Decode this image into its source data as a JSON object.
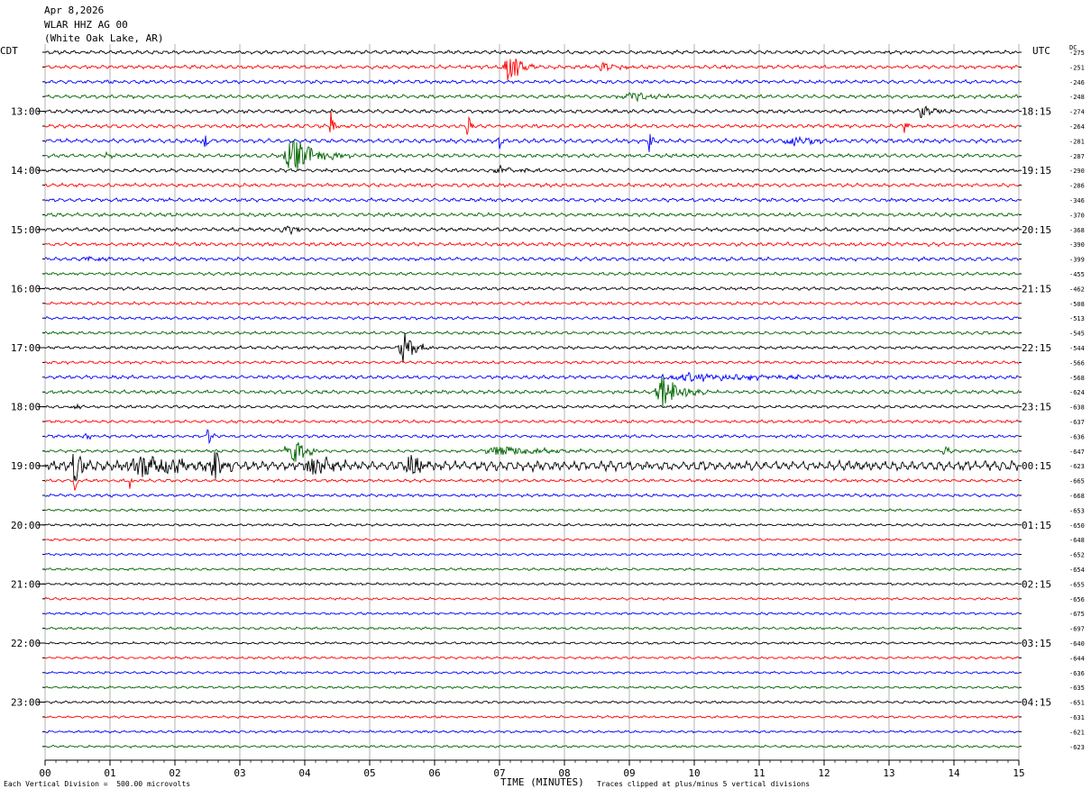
{
  "header": {
    "date": "Apr 8,2026",
    "station": "WLAR HHZ AG 00",
    "location": "(White Oak Lake, AR)"
  },
  "left_timezone": "CDT",
  "right_timezone": "UTC",
  "dc_label": "DC",
  "footer": {
    "scale_note": "Each Vertical Division =  500.00 microvolts",
    "clip_note": "Traces clipped at plus/minus 5 vertical divisions"
  },
  "colors": {
    "trace_cycle": [
      "#000000",
      "#ff0000",
      "#0000ff",
      "#006400"
    ],
    "grid": "#808080",
    "axis": "#000000"
  },
  "chart_data": {
    "type": "line",
    "subtype": "helicorder",
    "xlabel": "TIME (MINUTES)",
    "xlim": [
      0,
      15
    ],
    "x_ticks": [
      "00",
      "01",
      "02",
      "03",
      "04",
      "05",
      "06",
      "07",
      "08",
      "09",
      "10",
      "11",
      "12",
      "13",
      "14",
      "15"
    ],
    "row_count": 48,
    "minutes_per_row": 15,
    "left_hour_labels": [
      {
        "row": 4,
        "label": "13:00"
      },
      {
        "row": 8,
        "label": "14:00"
      },
      {
        "row": 12,
        "label": "15:00"
      },
      {
        "row": 16,
        "label": "16:00"
      },
      {
        "row": 20,
        "label": "17:00"
      },
      {
        "row": 24,
        "label": "18:00"
      },
      {
        "row": 28,
        "label": "19:00"
      },
      {
        "row": 32,
        "label": "20:00"
      },
      {
        "row": 36,
        "label": "21:00"
      },
      {
        "row": 40,
        "label": "22:00"
      },
      {
        "row": 44,
        "label": "23:00"
      }
    ],
    "right_hour_labels": [
      {
        "row": 4,
        "label": "18:15"
      },
      {
        "row": 8,
        "label": "19:15"
      },
      {
        "row": 12,
        "label": "20:15"
      },
      {
        "row": 16,
        "label": "21:15"
      },
      {
        "row": 20,
        "label": "22:15"
      },
      {
        "row": 24,
        "label": "23:15"
      },
      {
        "row": 28,
        "label": "00:15"
      },
      {
        "row": 32,
        "label": "01:15"
      },
      {
        "row": 36,
        "label": "02:15"
      },
      {
        "row": 40,
        "label": "03:15"
      },
      {
        "row": 44,
        "label": "04:15"
      }
    ],
    "dc_offsets": [
      -275,
      -251,
      -246,
      -248,
      -274,
      -264,
      -281,
      -287,
      -290,
      -286,
      -346,
      -370,
      -368,
      -390,
      -399,
      -455,
      -462,
      -508,
      -513,
      -545,
      -544,
      -566,
      -568,
      -624,
      -638,
      -637,
      -636,
      -647,
      -623,
      -665,
      -668,
      -653,
      -650,
      -648,
      -652,
      -654,
      -655,
      -656,
      -675,
      -697,
      -640,
      -644,
      -636,
      -635,
      -651,
      -631,
      -621,
      -623
    ],
    "trace_amplitude_divisions": [
      0.6,
      0.6,
      0.6,
      0.6,
      0.6,
      0.6,
      0.7,
      0.6,
      0.6,
      0.6,
      0.6,
      0.6,
      0.6,
      0.6,
      0.6,
      0.5,
      0.5,
      0.5,
      0.5,
      0.5,
      0.5,
      0.5,
      0.6,
      0.6,
      0.5,
      0.5,
      0.5,
      0.5,
      1.6,
      0.5,
      0.5,
      0.4,
      0.4,
      0.4,
      0.4,
      0.4,
      0.4,
      0.4,
      0.4,
      0.4,
      0.4,
      0.4,
      0.4,
      0.4,
      0.4,
      0.4,
      0.4,
      0.4
    ],
    "events": [
      {
        "row": 1,
        "minute": 7.13,
        "duration_min": 0.25,
        "amplitude_div": 5
      },
      {
        "row": 1,
        "minute": 8.6,
        "duration_min": 0.4,
        "amplitude_div": 1
      },
      {
        "row": 3,
        "minute": 9.0,
        "duration_min": 0.8,
        "amplitude_div": 1
      },
      {
        "row": 4,
        "minute": 13.5,
        "duration_min": 0.3,
        "amplitude_div": 1.5
      },
      {
        "row": 5,
        "minute": 4.4,
        "duration_min": 0.06,
        "amplitude_div": 5
      },
      {
        "row": 5,
        "minute": 6.5,
        "duration_min": 0.06,
        "amplitude_div": 5
      },
      {
        "row": 5,
        "minute": 13.24,
        "duration_min": 0.04,
        "amplitude_div": 5
      },
      {
        "row": 6,
        "minute": 2.45,
        "duration_min": 0.06,
        "amplitude_div": 3
      },
      {
        "row": 6,
        "minute": 7.0,
        "duration_min": 0.08,
        "amplitude_div": 2
      },
      {
        "row": 6,
        "minute": 9.3,
        "duration_min": 0.05,
        "amplitude_div": 3
      },
      {
        "row": 6,
        "minute": 11.5,
        "duration_min": 0.6,
        "amplitude_div": 1
      },
      {
        "row": 7,
        "minute": 0.95,
        "duration_min": 0.06,
        "amplitude_div": 2.5
      },
      {
        "row": 7,
        "minute": 3.8,
        "duration_min": 0.5,
        "amplitude_div": 5
      },
      {
        "row": 8,
        "minute": 7.0,
        "duration_min": 0.5,
        "amplitude_div": 1
      },
      {
        "row": 12,
        "minute": 3.7,
        "duration_min": 0.4,
        "amplitude_div": 1
      },
      {
        "row": 14,
        "minute": 0.6,
        "duration_min": 0.3,
        "amplitude_div": 1
      },
      {
        "row": 20,
        "minute": 5.5,
        "duration_min": 0.25,
        "amplitude_div": 5
      },
      {
        "row": 22,
        "minute": 10.0,
        "duration_min": 2.0,
        "amplitude_div": 1
      },
      {
        "row": 23,
        "minute": 9.5,
        "duration_min": 0.4,
        "amplitude_div": 5
      },
      {
        "row": 24,
        "minute": 0.45,
        "duration_min": 0.08,
        "amplitude_div": 2
      },
      {
        "row": 26,
        "minute": 0.6,
        "duration_min": 0.1,
        "amplitude_div": 2
      },
      {
        "row": 26,
        "minute": 2.5,
        "duration_min": 0.1,
        "amplitude_div": 2
      },
      {
        "row": 27,
        "minute": 3.75,
        "duration_min": 0.3,
        "amplitude_div": 5
      },
      {
        "row": 27,
        "minute": 7.0,
        "duration_min": 1.0,
        "amplitude_div": 1.5
      },
      {
        "row": 27,
        "minute": 13.85,
        "duration_min": 0.1,
        "amplitude_div": 2
      },
      {
        "row": 28,
        "minute": 0.45,
        "duration_min": 0.15,
        "amplitude_div": 5
      },
      {
        "row": 28,
        "minute": 1.5,
        "duration_min": 1.1,
        "amplitude_div": 3
      },
      {
        "row": 28,
        "minute": 2.6,
        "duration_min": 0.2,
        "amplitude_div": 5
      },
      {
        "row": 28,
        "minute": 4.1,
        "duration_min": 0.4,
        "amplitude_div": 3
      },
      {
        "row": 28,
        "minute": 5.65,
        "duration_min": 0.35,
        "amplitude_div": 4
      },
      {
        "row": 29,
        "minute": 0.45,
        "duration_min": 0.05,
        "amplitude_div": 5
      },
      {
        "row": 29,
        "minute": 1.3,
        "duration_min": 0.05,
        "amplitude_div": 3
      }
    ]
  }
}
